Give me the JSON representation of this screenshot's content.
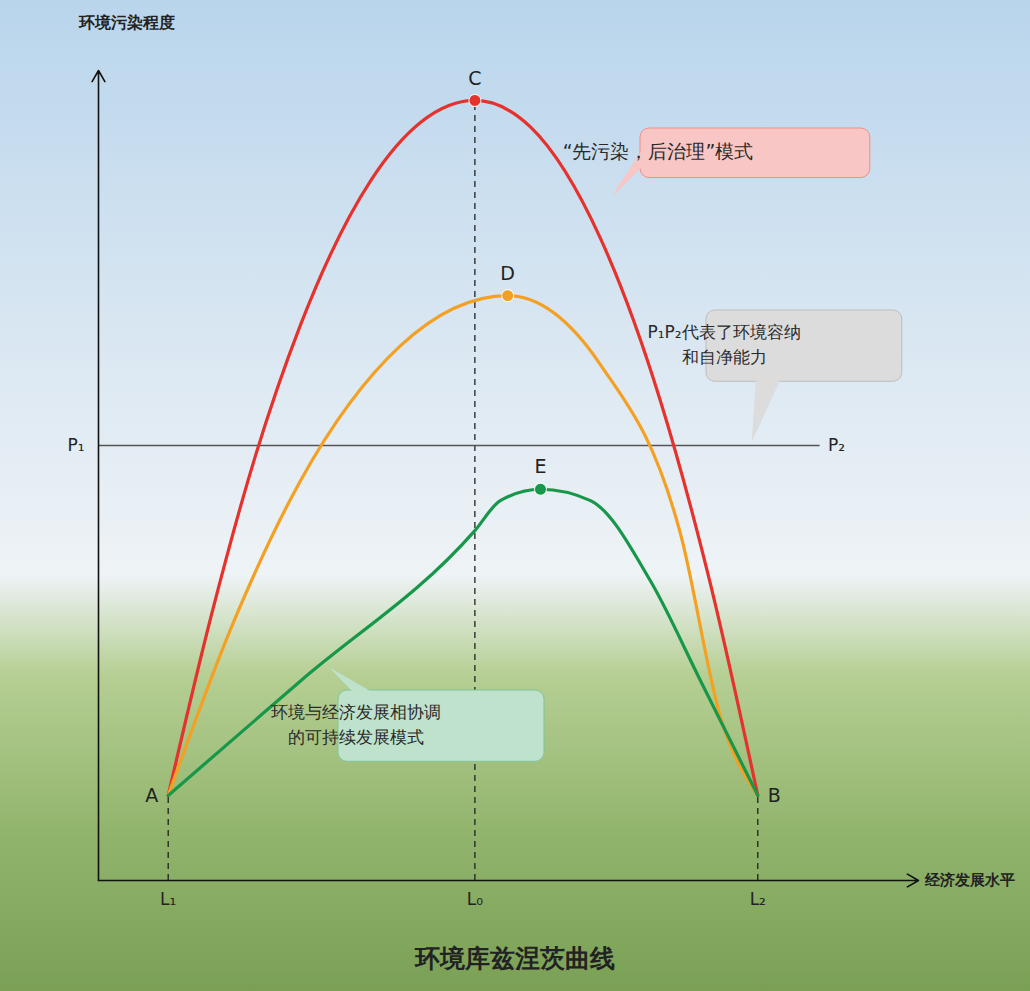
{
  "chart_data": {
    "type": "line",
    "title": "环境库兹涅茨曲线",
    "ylabel": "环境污染程度",
    "xlabel": "经济发展水平",
    "xlim": [
      0,
      100
    ],
    "ylim": [
      0,
      100
    ],
    "xticks": [
      {
        "value": 8.5,
        "label": "L₁"
      },
      {
        "value": 45.9,
        "label": "L₀"
      },
      {
        "value": 80.4,
        "label": "L₂"
      }
    ],
    "yticks": [],
    "tick_labels": "x",
    "series": [
      {
        "name": "“先污染，后治理”模式",
        "color": "#e5322d",
        "x": [
          8.5,
          13.7,
          19.1,
          24.6,
          33.2,
          39.3,
          45.9,
          52.7,
          61.2,
          68.5,
          74.6,
          80.4
        ],
        "values": [
          10.5,
          32.5,
          52.3,
          68.5,
          86.4,
          93.6,
          96.3,
          93.0,
          79.3,
          59.3,
          36.7,
          10.5
        ],
        "peak": {
          "label": "C",
          "x": 45.9,
          "y": 96.3
        }
      },
      {
        "name": null,
        "color": "#f4a023",
        "x": [
          8.5,
          16.1,
          24.6,
          36.8,
          49.9,
          61.2,
          71.0,
          75.9,
          80.4
        ],
        "values": [
          10.5,
          31.0,
          49.3,
          66.0,
          72.2,
          63.7,
          42.7,
          20.0,
          10.5
        ],
        "peak": {
          "label": "D",
          "x": 49.9,
          "y": 72.2
        }
      },
      {
        "name": "环境与经济发展相协调的可持续发展模式",
        "color": "#17974a",
        "x": [
          8.5,
          24.6,
          45.9,
          49.0,
          53.9,
          60.0,
          67.3,
          73.4,
          80.4
        ],
        "values": [
          10.5,
          24.6,
          43.2,
          46.9,
          48.3,
          46.9,
          37.0,
          24.7,
          10.5
        ],
        "peak": {
          "label": "E",
          "x": 53.9,
          "y": 48.3
        }
      }
    ],
    "reference_line": {
      "y": 53.7,
      "x": [
        0,
        88.0
      ],
      "labels": [
        "P₁",
        "P₂"
      ],
      "note": "P₁P₂代表了环境容纳和自净能力"
    },
    "labeled_points": [
      {
        "label": "A",
        "x": 8.5,
        "y": 10.5
      },
      {
        "label": "B",
        "x": 80.4,
        "y": 10.5
      }
    ]
  }
}
